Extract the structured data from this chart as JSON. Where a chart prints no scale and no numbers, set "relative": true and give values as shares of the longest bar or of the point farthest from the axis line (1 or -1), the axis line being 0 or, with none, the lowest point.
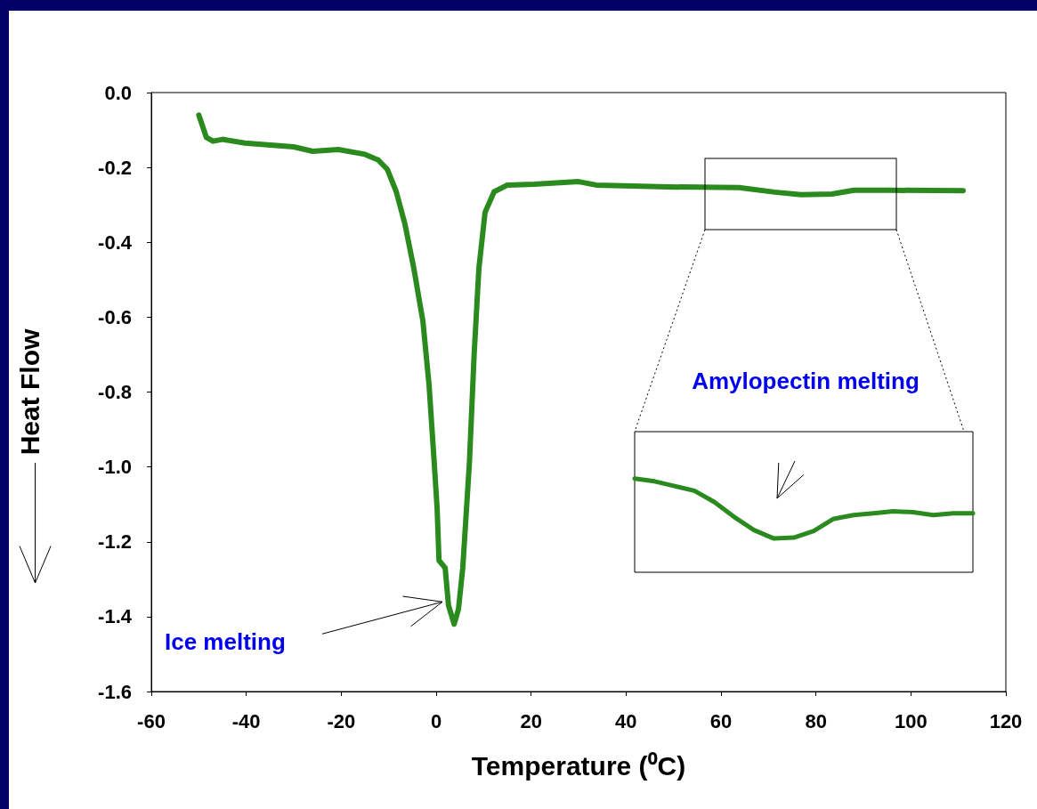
{
  "chart_data": [
    {
      "type": "line",
      "xlabel": "Temperature (⁰C)",
      "ylabel": "Heat Flow",
      "color": "#2a8a1e",
      "line_style": "solid",
      "x": [
        -50,
        -48.4,
        -47,
        -45,
        -40.3,
        -30,
        -26,
        -20.6,
        -15,
        -12.2,
        -10.3,
        -8.4,
        -6.6,
        -4.7,
        -2.8,
        -1.5,
        -0.4,
        0.2,
        0.6,
        1.9,
        2.6,
        3.8,
        4.7,
        5.6,
        7,
        8,
        9,
        10.3,
        12.2,
        15,
        20.6,
        30,
        33.7,
        48.8,
        63.8,
        71.3,
        76.9,
        83.4,
        88,
        95.6,
        111
      ],
      "values": [
        -0.06,
        -0.12,
        -0.13,
        -0.125,
        -0.135,
        -0.145,
        -0.157,
        -0.152,
        -0.165,
        -0.18,
        -0.205,
        -0.265,
        -0.35,
        -0.47,
        -0.61,
        -0.78,
        -0.99,
        -1.11,
        -1.25,
        -1.27,
        -1.37,
        -1.42,
        -1.38,
        -1.27,
        -0.99,
        -0.7,
        -0.47,
        -0.32,
        -0.265,
        -0.247,
        -0.245,
        -0.238,
        -0.247,
        -0.252,
        -0.254,
        -0.266,
        -0.273,
        -0.271,
        -0.261,
        -0.261,
        -0.262
      ],
      "xlim": [
        -60,
        120
      ],
      "xticks": [
        -60,
        -40,
        -20,
        0,
        20,
        40,
        60,
        80,
        100,
        120
      ],
      "ylim": [
        -1.6,
        0
      ],
      "yticks": [
        {
          "value": -1.6,
          "label": "-1.6"
        },
        {
          "value": -1.4,
          "label": "-1.4"
        },
        {
          "value": -1.2,
          "label": "-1.2"
        },
        {
          "value": -1,
          "label": "-1.0"
        },
        {
          "value": -0.8,
          "label": "-0.8"
        },
        {
          "value": -0.6,
          "label": "-0.6"
        },
        {
          "value": -0.4,
          "label": "-0.4"
        },
        {
          "value": -0.2,
          "label": "-0.2"
        },
        {
          "value": 0,
          "label": "0.0"
        }
      ],
      "annotations": [
        "Ice melting"
      ]
    },
    {
      "type": "line",
      "relative": true,
      "color": "#2a8a1e",
      "categories": [
        null,
        null,
        null,
        null,
        null,
        null,
        null,
        null,
        null,
        null,
        null,
        null,
        null,
        null,
        null,
        null,
        null,
        null
      ],
      "values": [
        1,
        0.97,
        0.92,
        0.87,
        0.75,
        0.59,
        0.45,
        0.36,
        0.37,
        0.44,
        0.57,
        0.61,
        0.63,
        0.65,
        0.64,
        0.61,
        0.63,
        0.63
      ],
      "annotations": [
        "Amylopectin melting"
      ]
    }
  ]
}
